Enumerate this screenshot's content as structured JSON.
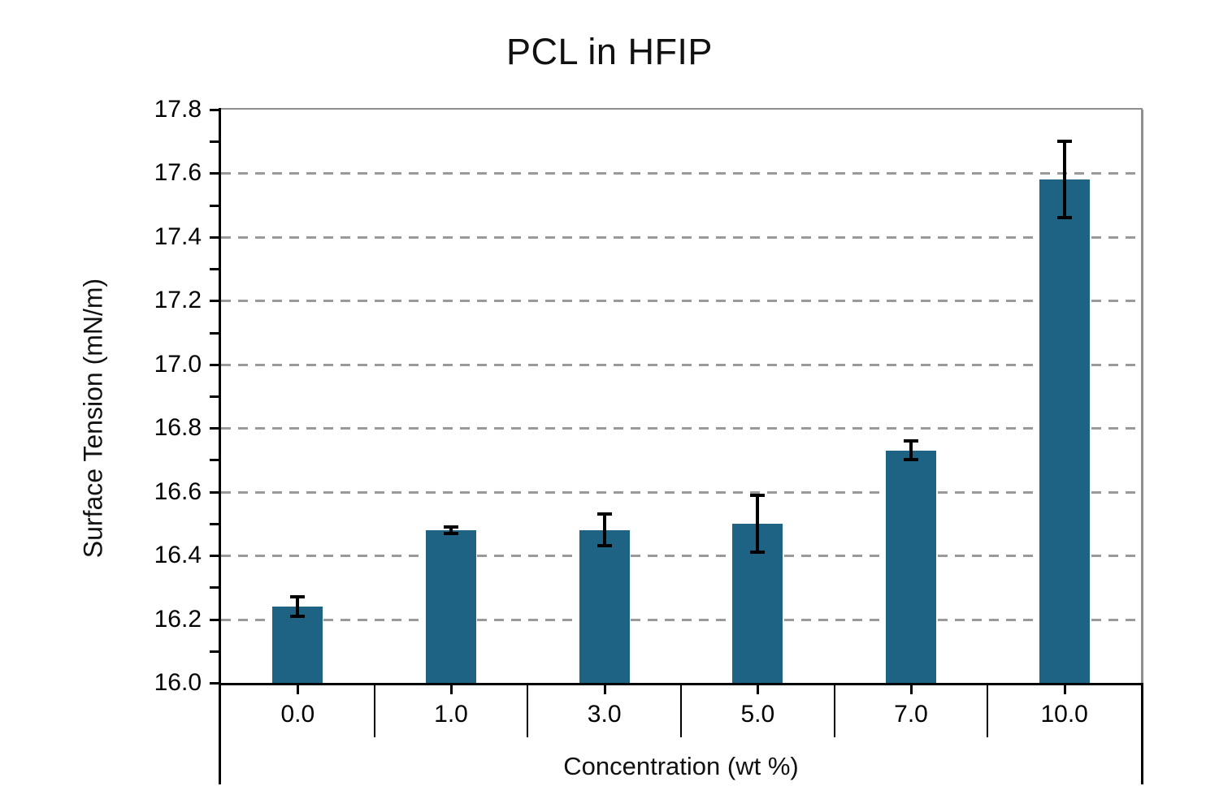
{
  "chart_data": {
    "type": "bar",
    "title": "PCL in HFIP",
    "xlabel": "Concentration (wt %)",
    "ylabel": "Surface Tension (mN/m)",
    "categories": [
      "0.0",
      "1.0",
      "3.0",
      "5.0",
      "7.0",
      "10.0"
    ],
    "values": [
      16.24,
      16.48,
      16.48,
      16.5,
      16.73,
      17.58
    ],
    "error_bars": [
      0.03,
      0.01,
      0.05,
      0.09,
      0.03,
      0.12
    ],
    "ylim": [
      16.0,
      17.8
    ],
    "ytick_major_step": 0.2,
    "ytick_minor_step": 0.1,
    "grid": "horizontal dashed at major steps",
    "legend": "none",
    "colors": {
      "bar_fill": "#1e6384",
      "error_bar": "#000000",
      "gridline": "#9a9a9a",
      "plot_border": "#8f8f8f",
      "axis": "#000000",
      "text": "#111111"
    }
  }
}
